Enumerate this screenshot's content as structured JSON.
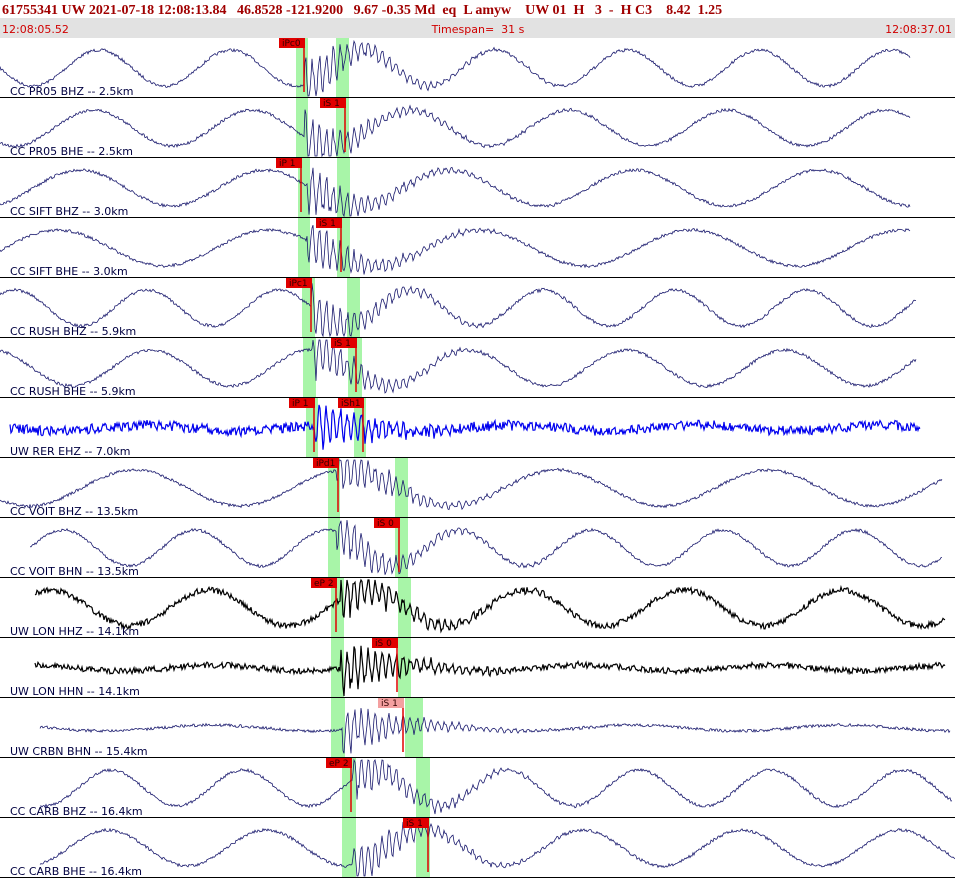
{
  "header": {
    "event_line": "61755341 UW 2021-07-18 12:08:13.84   46.8528 -121.9200   9.67 -0.35 Md  eq  L amyw    UW 01  H   3  -  H C3    8.42  1.25",
    "start_time": "12:08:05.52",
    "timespan": "Timespan=  31 s",
    "end_time": "12:08:37.01"
  },
  "traces": [
    {
      "label": "CC PR05 BHZ -- 2.5km",
      "picks": [
        {
          "label": "iPc0"
        }
      ]
    },
    {
      "label": "CC PR05 BHE -- 2.5km",
      "picks": [
        {
          "label": "iS 1"
        }
      ]
    },
    {
      "label": "CC SIFT BHZ -- 3.0km",
      "picks": [
        {
          "label": "iP 1"
        }
      ]
    },
    {
      "label": "CC SIFT BHE -- 3.0km",
      "picks": [
        {
          "label": "iS 1"
        }
      ]
    },
    {
      "label": "CC RUSH BHZ -- 5.9km",
      "picks": [
        {
          "label": "iPc1"
        }
      ]
    },
    {
      "label": "CC RUSH BHE -- 5.9km",
      "picks": [
        {
          "label": "iS 1"
        }
      ]
    },
    {
      "label": "UW RER EHZ -- 7.0km",
      "picks": [
        {
          "label": "iP 1"
        },
        {
          "label": "iSh1"
        }
      ]
    },
    {
      "label": "CC VOIT BHZ -- 13.5km",
      "picks": [
        {
          "label": "iPd1"
        }
      ]
    },
    {
      "label": "CC VOIT BHN -- 13.5km",
      "picks": [
        {
          "label": "iS 0"
        }
      ]
    },
    {
      "label": "UW LON HHZ -- 14.1km",
      "picks": [
        {
          "label": "eP 2"
        }
      ]
    },
    {
      "label": "UW LON HHN -- 14.1km",
      "picks": [
        {
          "label": "iS 0"
        }
      ]
    },
    {
      "label": "UW CRBN BHN -- 15.4km",
      "picks": [
        {
          "label": "iS 1"
        }
      ]
    },
    {
      "label": "CC CARB BHZ -- 16.4km",
      "picks": [
        {
          "label": "eP 2"
        }
      ]
    },
    {
      "label": "CC CARB BHE -- 16.4km",
      "picks": [
        {
          "label": "iS 1"
        }
      ]
    }
  ]
}
